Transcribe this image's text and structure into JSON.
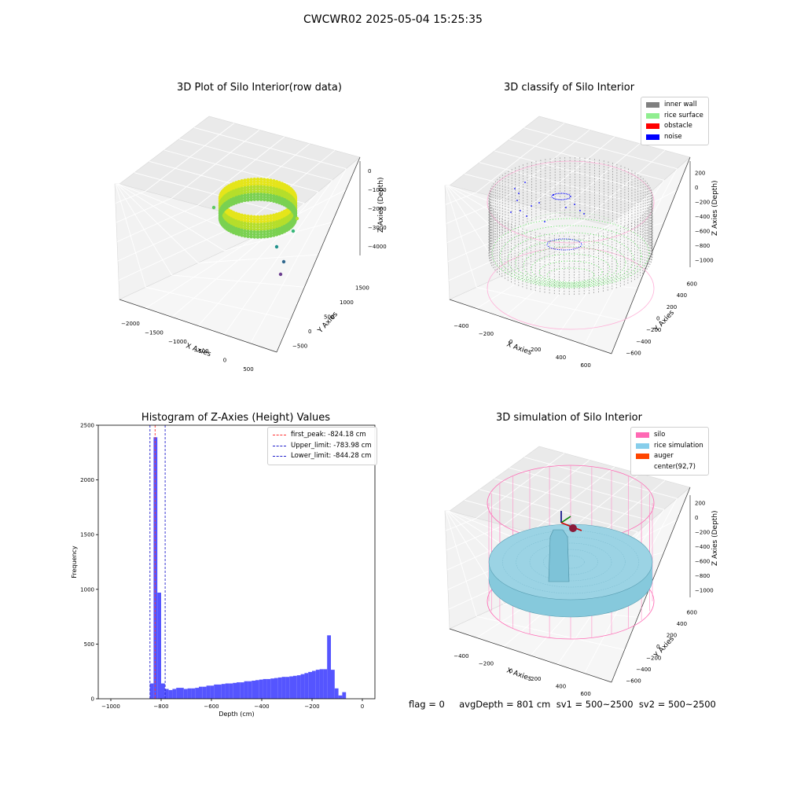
{
  "suptitle": "CWCWR02 2025-05-04 15:25:35",
  "footer": "flag = 0     avgDepth = 801 cm  sv1 = 500~2500  sv2 = 500~2500",
  "colors": {
    "histogram": "#5555ff",
    "peak_line": "#ff3333",
    "limit_line": "#2222cc",
    "inner_wall": "#808080",
    "rice_surface": "#90ee90",
    "obstacle": "#ff0000",
    "noise": "#0000ff",
    "silo": "#ff69b4",
    "rice_simulation": "#87ceeb",
    "auger": "#ff4500"
  },
  "chart_data": [
    {
      "type": "scatter",
      "projection": "3d",
      "title": "3D Plot of Silo Interior(row data)",
      "xlabel": "X Axies",
      "ylabel": "Y Axies",
      "zlabel": "Z Axies (Depth)",
      "xticks": [
        "−2000",
        "−1500",
        "−1000",
        "−500",
        "0",
        "500"
      ],
      "yticks": [
        "−500",
        "0",
        "500",
        "1000",
        "1500"
      ],
      "zticks": [
        "0",
        "−1000",
        "−2000",
        "−3000",
        "−4000"
      ],
      "colormap": "viridis",
      "description_points": "ring of points around depth −800 to −2000, scattered outliers below"
    },
    {
      "type": "scatter",
      "projection": "3d",
      "title": "3D classify of Silo Interior",
      "xlabel": "X Axies",
      "ylabel": "Y Axies",
      "zlabel": "Z Axies (Depth)",
      "xticks": [
        "−400",
        "−200",
        "0",
        "200",
        "400",
        "600"
      ],
      "yticks": [
        "−600",
        "−400",
        "−200",
        "0",
        "200",
        "400",
        "600"
      ],
      "zticks": [
        "200",
        "0",
        "−200",
        "−400",
        "−600",
        "−800",
        "−1000"
      ],
      "legend": [
        "inner wall",
        "rice surface",
        "obstacle",
        "noise"
      ],
      "legend_loc": "upper right"
    },
    {
      "type": "bar",
      "title": "Histogram of Z-Axies (Height) Values",
      "xlabel": "Depth (cm)",
      "ylabel": "Frequency",
      "xlim": [
        -1050,
        50
      ],
      "ylim": [
        0,
        2500
      ],
      "xticks": [
        -1000,
        -800,
        -600,
        -400,
        -200,
        0
      ],
      "yticks": [
        0,
        500,
        1000,
        1500,
        2000,
        2500
      ],
      "bin_width": 15,
      "bins": [
        [
          -845,
          140
        ],
        [
          -830,
          2390
        ],
        [
          -815,
          970
        ],
        [
          -800,
          140
        ],
        [
          -785,
          90
        ],
        [
          -770,
          80
        ],
        [
          -755,
          90
        ],
        [
          -740,
          100
        ],
        [
          -725,
          100
        ],
        [
          -710,
          90
        ],
        [
          -695,
          95
        ],
        [
          -680,
          95
        ],
        [
          -665,
          100
        ],
        [
          -650,
          110
        ],
        [
          -635,
          110
        ],
        [
          -620,
          120
        ],
        [
          -605,
          120
        ],
        [
          -590,
          130
        ],
        [
          -575,
          130
        ],
        [
          -560,
          135
        ],
        [
          -545,
          140
        ],
        [
          -530,
          140
        ],
        [
          -515,
          145
        ],
        [
          -500,
          150
        ],
        [
          -485,
          150
        ],
        [
          -470,
          160
        ],
        [
          -455,
          160
        ],
        [
          -440,
          165
        ],
        [
          -425,
          170
        ],
        [
          -410,
          175
        ],
        [
          -395,
          180
        ],
        [
          -380,
          180
        ],
        [
          -365,
          185
        ],
        [
          -350,
          190
        ],
        [
          -335,
          195
        ],
        [
          -320,
          200
        ],
        [
          -305,
          200
        ],
        [
          -290,
          205
        ],
        [
          -275,
          210
        ],
        [
          -260,
          215
        ],
        [
          -245,
          225
        ],
        [
          -230,
          235
        ],
        [
          -215,
          245
        ],
        [
          -200,
          255
        ],
        [
          -185,
          265
        ],
        [
          -170,
          270
        ],
        [
          -155,
          270
        ],
        [
          -140,
          580
        ],
        [
          -125,
          265
        ],
        [
          -110,
          95
        ],
        [
          -95,
          30
        ],
        [
          -80,
          60
        ]
      ],
      "vlines": [
        {
          "label": "first_peak: -824.18 cm",
          "x": -824.18,
          "style": "peak"
        },
        {
          "label": "Upper_limit: -783.98 cm",
          "x": -783.98,
          "style": "limit"
        },
        {
          "label": "Lower_limit: -844.28 cm",
          "x": -844.28,
          "style": "limit"
        }
      ],
      "legend_loc": "upper right"
    },
    {
      "type": "surface",
      "projection": "3d",
      "title": "3D simulation of Silo Interior",
      "xlabel": "X Axies",
      "ylabel": "Y Axies",
      "zlabel": "Z Axies (Depth)",
      "xticks": [
        "−400",
        "−200",
        "0",
        "200",
        "400",
        "600"
      ],
      "yticks": [
        "−600",
        "−400",
        "−200",
        "0",
        "200",
        "400",
        "600"
      ],
      "zticks": [
        "200",
        "0",
        "−200",
        "−400",
        "−600",
        "−800",
        "−1000"
      ],
      "legend": [
        "silo",
        "rice simulation",
        "auger",
        "center(92,7)"
      ],
      "legend_loc": "upper right"
    }
  ]
}
